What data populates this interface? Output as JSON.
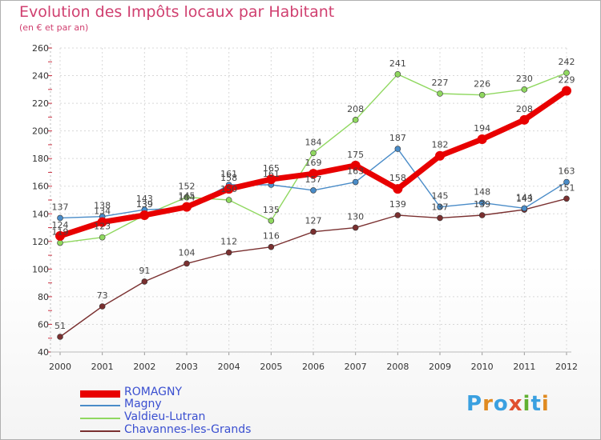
{
  "header": {
    "title": "Evolution des Impôts locaux par Habitant",
    "subtitle": "(en € et par an)"
  },
  "logo": {
    "text": "Proxiti",
    "letters": [
      "P",
      "r",
      "o",
      "x",
      "i",
      "t",
      "i"
    ],
    "letter_colors": [
      "#3aa0e0",
      "#e08a20",
      "#3aa0e0",
      "#e05030",
      "#60b030",
      "#3aa0e0",
      "#e08a20"
    ]
  },
  "chart_data": {
    "type": "line",
    "title": "Evolution des Impôts locaux par Habitant",
    "subtitle": "(en € et par an)",
    "xlabel": "",
    "ylabel": "",
    "x": [
      "2000",
      "2001",
      "2002",
      "2003",
      "2004",
      "2005",
      "2006",
      "2007",
      "2008",
      "2009",
      "2010",
      "2011",
      "2012"
    ],
    "ylim": [
      40,
      260
    ],
    "yticks": [
      40,
      60,
      80,
      100,
      120,
      140,
      160,
      180,
      200,
      220,
      240,
      260
    ],
    "grid": true,
    "legend_position": "bottom-left",
    "series": [
      {
        "name": "ROMAGNY",
        "color": "#e80000",
        "emphasis": "bold",
        "values": [
          124,
          134,
          139,
          145,
          158,
          165,
          169,
          175,
          158,
          182,
          194,
          208,
          229
        ],
        "labels": [
          "124",
          "134",
          "139",
          "145",
          "158",
          "165",
          "169",
          "175",
          "158",
          "182",
          "194",
          "208",
          "229"
        ]
      },
      {
        "name": "Magny",
        "color": "#4a8cc8",
        "values": [
          137,
          138,
          143,
          144,
          161,
          161,
          157,
          163,
          187,
          145,
          148,
          144,
          163
        ],
        "labels": [
          "137",
          "138",
          "143",
          "144",
          "161",
          "161",
          "157",
          "163",
          "187",
          "145",
          "148",
          "144",
          "163"
        ]
      },
      {
        "name": "Valdieu-Lutran",
        "color": "#90d860",
        "values": [
          119,
          123,
          139,
          152,
          150,
          135,
          184,
          208,
          241,
          227,
          226,
          230,
          242
        ],
        "labels": [
          "119",
          "123",
          "139",
          "152",
          "150",
          "135",
          "184",
          "208",
          "241",
          "227",
          "226",
          "230",
          "242"
        ]
      },
      {
        "name": "Chavannes-les-Grands",
        "color": "#7a3030",
        "values": [
          51,
          73,
          91,
          104,
          112,
          116,
          127,
          130,
          139,
          137,
          139,
          143,
          151
        ],
        "labels": [
          "51",
          "73",
          "91",
          "104",
          "112",
          "116",
          "127",
          "130",
          "139",
          "137",
          "139",
          "143",
          "151"
        ]
      }
    ]
  }
}
